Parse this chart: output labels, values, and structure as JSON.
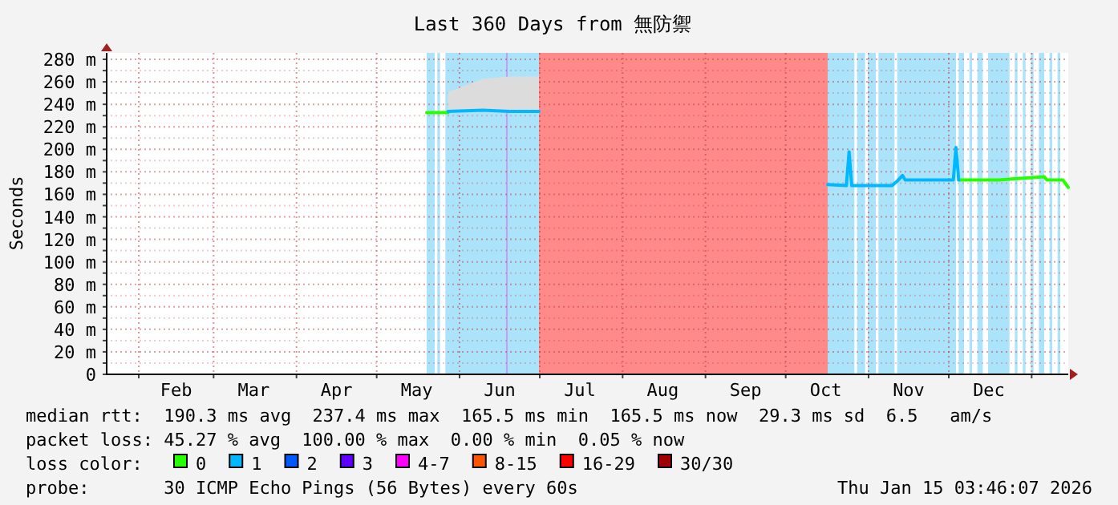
{
  "chart_data": {
    "type": "line",
    "title": "Last 360 Days from 無防禦",
    "ylabel": "Seconds",
    "xlim": [
      "2025-01-20",
      "2026-01-15"
    ],
    "xticks": [
      {
        "value": "2025-02-01",
        "label": null
      },
      {
        "value": "2025-03-01",
        "label": null
      },
      {
        "value": "2025-04-01",
        "label": null
      },
      {
        "value": "2025-05-01",
        "label": null
      },
      {
        "value": "2025-06-01",
        "label": null
      },
      {
        "value": "2025-07-01",
        "label": null
      },
      {
        "value": "2025-08-01",
        "label": null
      },
      {
        "value": "2025-09-01",
        "label": null
      },
      {
        "value": "2025-10-01",
        "label": null
      },
      {
        "value": "2025-11-01",
        "label": null
      },
      {
        "value": "2025-12-01",
        "label": null
      },
      {
        "value": "2026-01-01",
        "label": null
      },
      {
        "value": "2025-02-15",
        "label": "Feb"
      },
      {
        "value": "2025-03-16",
        "label": "Mar"
      },
      {
        "value": "2025-04-16",
        "label": "Apr"
      },
      {
        "value": "2025-05-16",
        "label": "May"
      },
      {
        "value": "2025-06-16",
        "label": "Jun"
      },
      {
        "value": "2025-07-16",
        "label": "Jul"
      },
      {
        "value": "2025-08-16",
        "label": "Aug"
      },
      {
        "value": "2025-09-16",
        "label": "Sep"
      },
      {
        "value": "2025-10-16",
        "label": "Oct"
      },
      {
        "value": "2025-11-16",
        "label": "Nov"
      },
      {
        "value": "2025-12-16",
        "label": "Dec"
      }
    ],
    "ylim": [
      0,
      285
    ],
    "yticks": [
      {
        "value": 0,
        "label": "0"
      },
      {
        "value": 10,
        "label": null
      },
      {
        "value": 20,
        "label": "20 m"
      },
      {
        "value": 30,
        "label": null
      },
      {
        "value": 40,
        "label": "40 m"
      },
      {
        "value": 50,
        "label": null
      },
      {
        "value": 60,
        "label": "60 m"
      },
      {
        "value": 70,
        "label": null
      },
      {
        "value": 80,
        "label": "80 m"
      },
      {
        "value": 90,
        "label": null
      },
      {
        "value": 100,
        "label": "100 m"
      },
      {
        "value": 110,
        "label": null
      },
      {
        "value": 120,
        "label": "120 m"
      },
      {
        "value": 130,
        "label": null
      },
      {
        "value": 140,
        "label": "140 m"
      },
      {
        "value": 150,
        "label": null
      },
      {
        "value": 160,
        "label": "160 m"
      },
      {
        "value": 170,
        "label": null
      },
      {
        "value": 180,
        "label": "180 m"
      },
      {
        "value": 190,
        "label": null
      },
      {
        "value": 200,
        "label": "200 m"
      },
      {
        "value": 210,
        "label": null
      },
      {
        "value": 220,
        "label": "220 m"
      },
      {
        "value": 230,
        "label": null
      },
      {
        "value": 240,
        "label": "240 m"
      },
      {
        "value": 250,
        "label": null
      },
      {
        "value": 260,
        "label": "260 m"
      },
      {
        "value": 270,
        "label": null
      },
      {
        "value": 280,
        "label": "280 m"
      }
    ],
    "grid": true,
    "legend": "bottom",
    "legend_title": "loss color:",
    "marker": "none",
    "line_style": "solid",
    "bands": [
      {
        "axis": "x",
        "from": "2025-05-20",
        "to": "2025-05-23",
        "color": "#aae3fa"
      },
      {
        "axis": "x",
        "from": "2025-05-24",
        "to": "2025-05-25",
        "color": "#aae3fa"
      },
      {
        "axis": "x",
        "from": "2025-05-27",
        "to": "2025-07-01",
        "color": "#aae3fa"
      },
      {
        "axis": "x",
        "from": "2025-07-01",
        "to": "2025-10-17",
        "color": "#ff8a8a"
      },
      {
        "axis": "x",
        "from": "2025-10-17",
        "to": "2025-10-27",
        "color": "#aae3fa"
      },
      {
        "axis": "x",
        "from": "2025-10-28",
        "to": "2025-10-31",
        "color": "#aae3fa"
      },
      {
        "axis": "x",
        "from": "2025-11-01",
        "to": "2025-11-04",
        "color": "#aae3fa"
      },
      {
        "axis": "x",
        "from": "2025-11-05",
        "to": "2025-11-11",
        "color": "#aae3fa"
      },
      {
        "axis": "x",
        "from": "2025-11-12",
        "to": "2025-12-04",
        "color": "#aae3fa"
      },
      {
        "axis": "x",
        "from": "2025-12-05",
        "to": "2025-12-07",
        "color": "#aae3fa"
      },
      {
        "axis": "x",
        "from": "2025-12-09",
        "to": "2025-12-10",
        "color": "#aae3fa"
      },
      {
        "axis": "x",
        "from": "2025-12-12",
        "to": "2025-12-14",
        "color": "#aae3fa"
      },
      {
        "axis": "x",
        "from": "2025-12-16",
        "to": "2025-12-24",
        "color": "#aae3fa"
      },
      {
        "axis": "x",
        "from": "2025-12-26",
        "to": "2025-12-27",
        "color": "#aae3fa"
      },
      {
        "axis": "x",
        "from": "2025-12-29",
        "to": "2025-12-30",
        "color": "#aae3fa"
      },
      {
        "axis": "x",
        "from": "2026-01-01",
        "to": "2026-01-02",
        "color": "#aae3fa"
      },
      {
        "axis": "x",
        "from": "2026-01-04",
        "to": "2026-01-06",
        "color": "#aae3fa"
      },
      {
        "axis": "x",
        "from": "2026-01-08",
        "to": "2026-01-09",
        "color": "#aae3fa"
      },
      {
        "axis": "x",
        "from": "2026-01-11",
        "to": "2026-01-12",
        "color": "#aae3fa"
      }
    ],
    "ref_lines": [
      {
        "axis": "x",
        "value": "2025-06-19",
        "color": "#c89bff"
      }
    ],
    "series": [
      {
        "name": "0",
        "color": "#26ff00",
        "x": [
          "2025-12-05",
          "2025-12-20",
          "2026-01-06",
          "2026-01-07",
          "2026-01-13",
          "2026-01-15"
        ],
        "values": [
          172,
          172,
          175,
          172,
          172,
          165.5
        ]
      },
      {
        "name": "1",
        "color": "#00b8ff",
        "x": [
          "2025-10-17",
          "2025-10-24",
          "2025-10-25",
          "2025-10-26",
          "2025-11-10",
          "2025-11-12",
          "2025-11-14",
          "2025-11-15",
          "2025-12-03",
          "2025-12-04",
          "2025-12-05"
        ],
        "values": [
          168,
          167,
          197,
          167,
          167,
          171,
          176,
          172,
          172,
          201,
          172
        ]
      },
      {
        "name": "2",
        "color": "#0059ff"
      },
      {
        "name": "3",
        "color": "#5e00ff"
      },
      {
        "name": "4-7",
        "color": "#ff00ff"
      },
      {
        "name": "8-15",
        "color": "#ff5500"
      },
      {
        "name": "16-29",
        "color": "#ff0000"
      },
      {
        "name": "30/30",
        "color": "#a10000"
      },
      {
        "color": "#26ff00",
        "x": [
          "2025-05-20",
          "2025-05-28"
        ],
        "values": [
          232,
          232
        ]
      },
      {
        "color": "#00b8ff",
        "x": [
          "2025-05-28",
          "2025-06-10",
          "2025-06-20",
          "2025-07-01"
        ],
        "values": [
          233,
          234,
          233,
          233
        ],
        "lower": [
          232,
          232,
          232,
          232
        ],
        "upper": [
          250,
          262,
          264,
          264
        ]
      }
    ],
    "annotations": [
      "median rtt:  190.3 ms avg  237.4 ms max  165.5 ms min  165.5 ms now  29.3 ms sd  6.5   am/s",
      "packet loss: 45.27 % avg  100.00 % max  0.00 % min  0.05 % now",
      "probe:       30 ICMP Echo Pings (56 Bytes) every 60s",
      "Thu Jan 15 03:46:07 2026"
    ]
  }
}
